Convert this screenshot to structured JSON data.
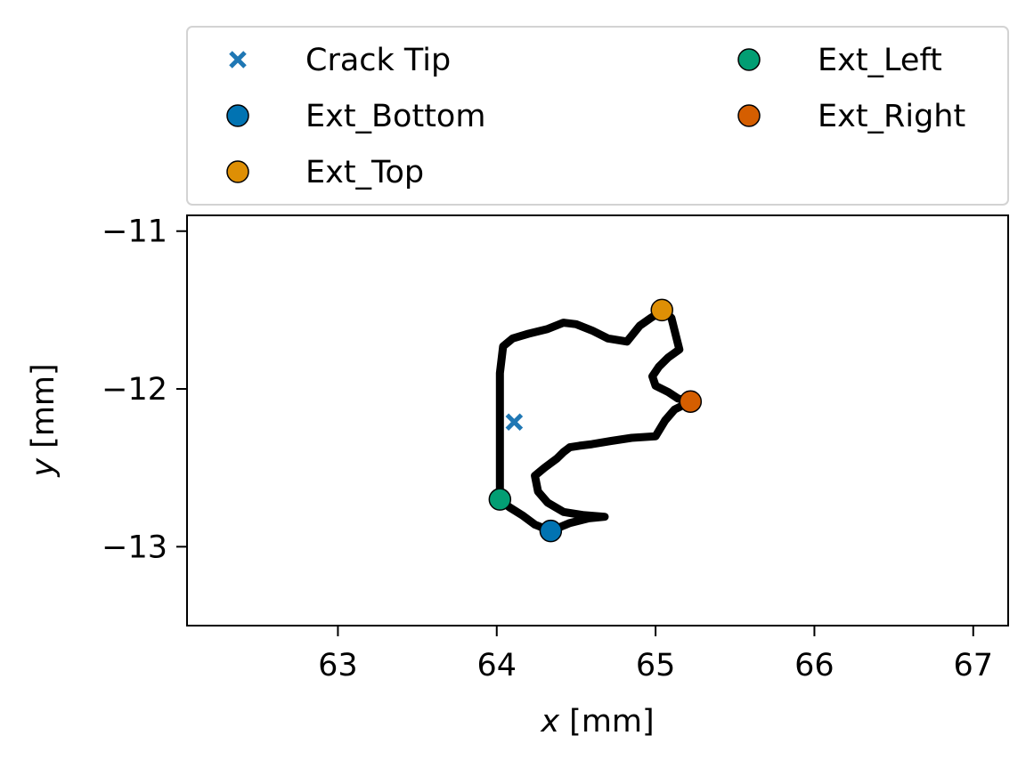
{
  "chart_data": {
    "type": "scatter",
    "xlabel_var": "x",
    "xlabel_unit": " [mm]",
    "ylabel_var": "y",
    "ylabel_unit": " [mm]",
    "xlim": [
      62.05,
      67.22
    ],
    "ylim": [
      -13.5,
      -10.9
    ],
    "xticks": [
      63,
      64,
      65,
      66,
      67
    ],
    "yticks": [
      -11,
      -12,
      -13
    ],
    "xtick_labels": [
      "63",
      "64",
      "65",
      "66",
      "67"
    ],
    "ytick_labels": [
      "−11",
      "−12",
      "−13"
    ],
    "grid": false,
    "legend_placement": "above plot, two columns",
    "contour": {
      "color": "#000000",
      "x": [
        64.02,
        64.02,
        64.04,
        64.1,
        64.2,
        64.32,
        64.42,
        64.5,
        64.6,
        64.7,
        64.82,
        64.9,
        64.97,
        65.05,
        65.1,
        65.15,
        65.08,
        65.02,
        64.98,
        65.0,
        65.08,
        65.14,
        65.22,
        65.12,
        65.06,
        65.0,
        64.85,
        64.72,
        64.6,
        64.52,
        64.46,
        64.42,
        64.38,
        64.3,
        64.24,
        64.26,
        64.32,
        64.42,
        64.55,
        64.68,
        64.58,
        64.46,
        64.34,
        64.24,
        64.16,
        64.08,
        64.02
      ],
      "y": [
        -12.7,
        -11.9,
        -11.73,
        -11.68,
        -11.65,
        -11.62,
        -11.58,
        -11.59,
        -11.63,
        -11.68,
        -11.7,
        -11.6,
        -11.55,
        -11.5,
        -11.55,
        -11.75,
        -11.8,
        -11.86,
        -11.92,
        -11.98,
        -12.02,
        -12.06,
        -12.08,
        -12.13,
        -12.2,
        -12.3,
        -12.31,
        -12.33,
        -12.35,
        -12.36,
        -12.37,
        -12.4,
        -12.44,
        -12.5,
        -12.55,
        -12.65,
        -12.72,
        -12.78,
        -12.8,
        -12.81,
        -12.82,
        -12.85,
        -12.9,
        -12.86,
        -12.8,
        -12.75,
        -12.7
      ]
    },
    "series": [
      {
        "name": "Crack Tip",
        "marker": "x",
        "color": "#1f77b4",
        "x": [
          64.11
        ],
        "y": [
          -12.21
        ]
      },
      {
        "name": "Ext_Bottom",
        "marker": "o",
        "color": "#0173b2",
        "x": [
          64.34
        ],
        "y": [
          -12.9
        ]
      },
      {
        "name": "Ext_Top",
        "marker": "o",
        "color": "#de8f05",
        "x": [
          65.04
        ],
        "y": [
          -11.5
        ]
      },
      {
        "name": "Ext_Left",
        "marker": "o",
        "color": "#029e73",
        "x": [
          64.02
        ],
        "y": [
          -12.7
        ]
      },
      {
        "name": "Ext_Right",
        "marker": "o",
        "color": "#d55e00",
        "x": [
          65.22
        ],
        "y": [
          -12.08
        ]
      }
    ]
  }
}
